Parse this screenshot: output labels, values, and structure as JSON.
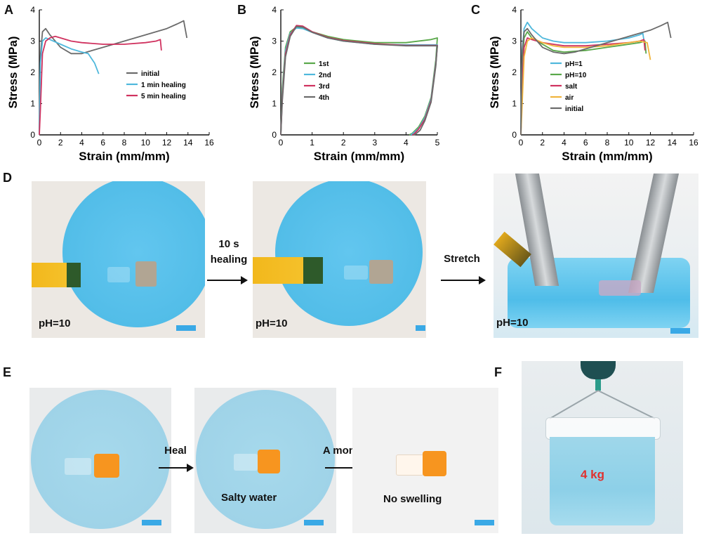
{
  "panels": {
    "A": "A",
    "B": "B",
    "C": "C",
    "D": "D",
    "E": "E",
    "F": "F"
  },
  "chart_data": [
    {
      "id": "A",
      "type": "line",
      "xlabel": "Strain (mm/mm)",
      "ylabel": "Stress (MPa)",
      "xlim": [
        0,
        16
      ],
      "ylim": [
        0,
        4
      ],
      "xticks": [
        0,
        2,
        4,
        6,
        8,
        10,
        12,
        14,
        16
      ],
      "yticks": [
        0,
        1,
        2,
        3,
        4
      ],
      "legend_position": "center-right",
      "series": [
        {
          "name": "initial",
          "color": "#6b6b6b",
          "x": [
            0,
            0.1,
            0.3,
            0.6,
            1,
            2,
            3,
            4,
            5,
            6,
            8,
            10,
            12,
            13,
            13.6,
            13.9
          ],
          "y": [
            0,
            2.5,
            3.3,
            3.4,
            3.2,
            2.8,
            2.6,
            2.6,
            2.7,
            2.8,
            3.0,
            3.2,
            3.4,
            3.55,
            3.65,
            3.1
          ]
        },
        {
          "name": "1 min healing",
          "color": "#4fb8dc",
          "x": [
            0,
            0.1,
            0.3,
            0.6,
            1,
            2,
            3,
            4,
            4.6,
            5.2,
            5.6
          ],
          "y": [
            0,
            2.3,
            3.0,
            3.1,
            3.05,
            2.9,
            2.75,
            2.65,
            2.6,
            2.3,
            1.95
          ]
        },
        {
          "name": "5 min healing",
          "color": "#d0325f",
          "x": [
            0,
            0.1,
            0.3,
            0.6,
            1,
            1.5,
            2,
            3,
            4,
            6,
            8,
            10,
            11,
            11.4,
            11.5
          ],
          "y": [
            0,
            0.8,
            2.6,
            3.0,
            3.1,
            3.15,
            3.1,
            3.0,
            2.95,
            2.9,
            2.9,
            2.95,
            3.0,
            3.05,
            2.7
          ]
        }
      ]
    },
    {
      "id": "B",
      "type": "line",
      "xlabel": "Strain (mm/mm)",
      "ylabel": "Stress (MPa)",
      "xlim": [
        0,
        5
      ],
      "ylim": [
        0,
        4
      ],
      "xticks": [
        0,
        1,
        2,
        3,
        4,
        5
      ],
      "yticks": [
        0,
        1,
        2,
        3,
        4
      ],
      "legend_position": "center-left",
      "series": [
        {
          "name": "1st",
          "color": "#5aa84a",
          "x": [
            0,
            0.05,
            0.15,
            0.3,
            0.5,
            0.7,
            1,
            1.5,
            2,
            3,
            4,
            4.8,
            5.0,
            4.95,
            4.8,
            4.6,
            4.4,
            4.2,
            4.1
          ],
          "y": [
            0,
            1.5,
            2.8,
            3.3,
            3.45,
            3.42,
            3.3,
            3.15,
            3.05,
            2.95,
            2.95,
            3.05,
            3.1,
            2.4,
            1.2,
            0.6,
            0.25,
            0.05,
            0
          ]
        },
        {
          "name": "2nd",
          "color": "#4fb8dc",
          "x": [
            0,
            0.05,
            0.15,
            0.3,
            0.5,
            0.7,
            1,
            1.5,
            2,
            3,
            4,
            4.8,
            5.0,
            4.95,
            4.8,
            4.6,
            4.4,
            4.2,
            4.15
          ],
          "y": [
            0,
            1.3,
            2.7,
            3.25,
            3.42,
            3.4,
            3.28,
            3.1,
            3.0,
            2.9,
            2.88,
            2.88,
            2.88,
            2.3,
            1.15,
            0.55,
            0.2,
            0.03,
            0
          ]
        },
        {
          "name": "3rd",
          "color": "#d0325f",
          "x": [
            0,
            0.05,
            0.15,
            0.3,
            0.5,
            0.7,
            1,
            1.5,
            2,
            3,
            4,
            4.8,
            5.0,
            4.95,
            4.8,
            4.6,
            4.4,
            4.25,
            4.2
          ],
          "y": [
            0,
            1.2,
            2.6,
            3.2,
            3.5,
            3.48,
            3.3,
            3.12,
            3.02,
            2.92,
            2.86,
            2.86,
            2.86,
            2.25,
            1.1,
            0.5,
            0.18,
            0.02,
            0
          ]
        },
        {
          "name": "4th",
          "color": "#6b6b6b",
          "x": [
            0,
            0.05,
            0.15,
            0.3,
            0.5,
            0.7,
            1,
            1.5,
            2,
            3,
            4,
            4.8,
            5.0,
            4.95,
            4.8,
            4.6,
            4.45,
            4.3,
            4.25
          ],
          "y": [
            0,
            1.1,
            2.5,
            3.15,
            3.47,
            3.45,
            3.28,
            3.1,
            3.0,
            2.9,
            2.85,
            2.85,
            2.85,
            2.2,
            1.05,
            0.45,
            0.15,
            0.02,
            0
          ]
        }
      ]
    },
    {
      "id": "C",
      "type": "line",
      "xlabel": "Strain (mm/mm)",
      "ylabel": "Stress (MPa)",
      "xlim": [
        0,
        16
      ],
      "ylim": [
        0,
        4
      ],
      "xticks": [
        0,
        2,
        4,
        6,
        8,
        10,
        12,
        14,
        16
      ],
      "yticks": [
        0,
        1,
        2,
        3,
        4
      ],
      "legend_position": "center-left",
      "series": [
        {
          "name": "pH=1",
          "color": "#4fb8dc",
          "x": [
            0,
            0.1,
            0.3,
            0.6,
            1,
            2,
            3,
            4,
            6,
            8,
            10,
            11,
            11.3,
            11.5
          ],
          "y": [
            0,
            2.6,
            3.4,
            3.6,
            3.4,
            3.1,
            3.0,
            2.95,
            2.95,
            3.0,
            3.1,
            3.2,
            3.25,
            2.8
          ]
        },
        {
          "name": "pH=10",
          "color": "#5aa84a",
          "x": [
            0,
            0.1,
            0.3,
            0.6,
            1,
            2,
            3,
            4,
            6,
            8,
            10,
            11,
            11.5,
            11.6
          ],
          "y": [
            0,
            2.2,
            3.1,
            3.3,
            3.1,
            2.9,
            2.7,
            2.65,
            2.7,
            2.8,
            2.9,
            2.95,
            3.0,
            2.6
          ]
        },
        {
          "name": "salt",
          "color": "#d0325f",
          "x": [
            0,
            0.1,
            0.3,
            0.6,
            1,
            2,
            3,
            4,
            6,
            8,
            10,
            11,
            11.4,
            11.5
          ],
          "y": [
            0,
            1.5,
            2.8,
            3.1,
            3.05,
            2.95,
            2.9,
            2.85,
            2.85,
            2.9,
            2.95,
            3.0,
            3.05,
            2.7
          ]
        },
        {
          "name": "air",
          "color": "#f0b43c",
          "x": [
            0,
            0.1,
            0.3,
            0.6,
            1,
            2,
            3,
            4,
            6,
            8,
            10,
            11,
            11.7,
            12.0
          ],
          "y": [
            0,
            0.8,
            2.5,
            3.0,
            3.1,
            2.95,
            2.85,
            2.8,
            2.8,
            2.85,
            2.95,
            3.0,
            2.95,
            2.4
          ]
        },
        {
          "name": "initial",
          "color": "#6b6b6b",
          "x": [
            0,
            0.1,
            0.3,
            0.6,
            1,
            2,
            3,
            4,
            5,
            6,
            8,
            10,
            12,
            13,
            13.6,
            13.9
          ],
          "y": [
            0,
            2.5,
            3.3,
            3.4,
            3.2,
            2.8,
            2.65,
            2.6,
            2.65,
            2.75,
            2.95,
            3.15,
            3.35,
            3.5,
            3.6,
            3.1
          ]
        }
      ]
    }
  ],
  "photos": {
    "D": {
      "caption_1": "pH=10",
      "caption_2": "pH=10",
      "caption_3": "pH=10",
      "arrow_1": "10 s\nhealing",
      "arrow_2": "Stretch"
    },
    "E": {
      "caption_2": "Salty water",
      "caption_3": "No swelling",
      "arrow_1": "Heal",
      "arrow_2": "A month"
    },
    "F": {
      "weight_label": "4 kg",
      "weight_color": "#e0312f"
    }
  },
  "colors": {
    "dish_blue": "#5cc3ec",
    "scale_bar": "#3aa9e6",
    "strip_yellow": "#f4bf2a"
  }
}
